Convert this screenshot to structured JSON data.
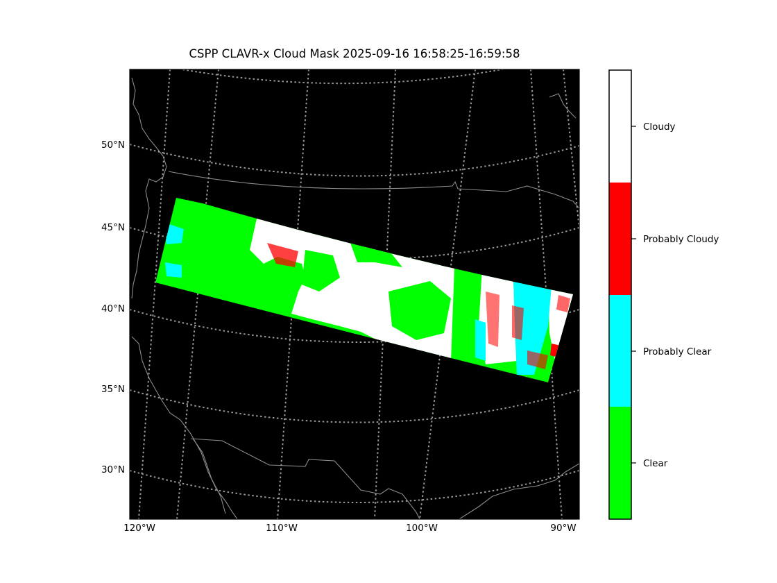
{
  "title": "CSPP CLAVR-x Cloud Mask 2025-09-16 16:58:25-16:59:58",
  "map": {
    "background_color": "#000000",
    "coastline_color": "#8c8c8c",
    "graticule_color": "#9a9a9a",
    "lat_ticks": [
      "50°N",
      "45°N",
      "40°N",
      "35°N",
      "30°N"
    ],
    "lon_ticks": [
      "120°W",
      "110°W",
      "100°W",
      "90°W"
    ]
  },
  "legend": {
    "classes": [
      {
        "label": "Cloudy",
        "color": "#ffffff"
      },
      {
        "label": "Probably Cloudy",
        "color": "#ff0000"
      },
      {
        "label": "Probably Clear",
        "color": "#00ffff"
      },
      {
        "label": "Clear",
        "color": "#00ff00"
      }
    ]
  },
  "swath": {
    "region_colors": {
      "clear": "#00ff00",
      "probably_clear": "#00ffff",
      "probably_cloudy": "#ff0000",
      "cloudy": "#ffffff"
    }
  }
}
